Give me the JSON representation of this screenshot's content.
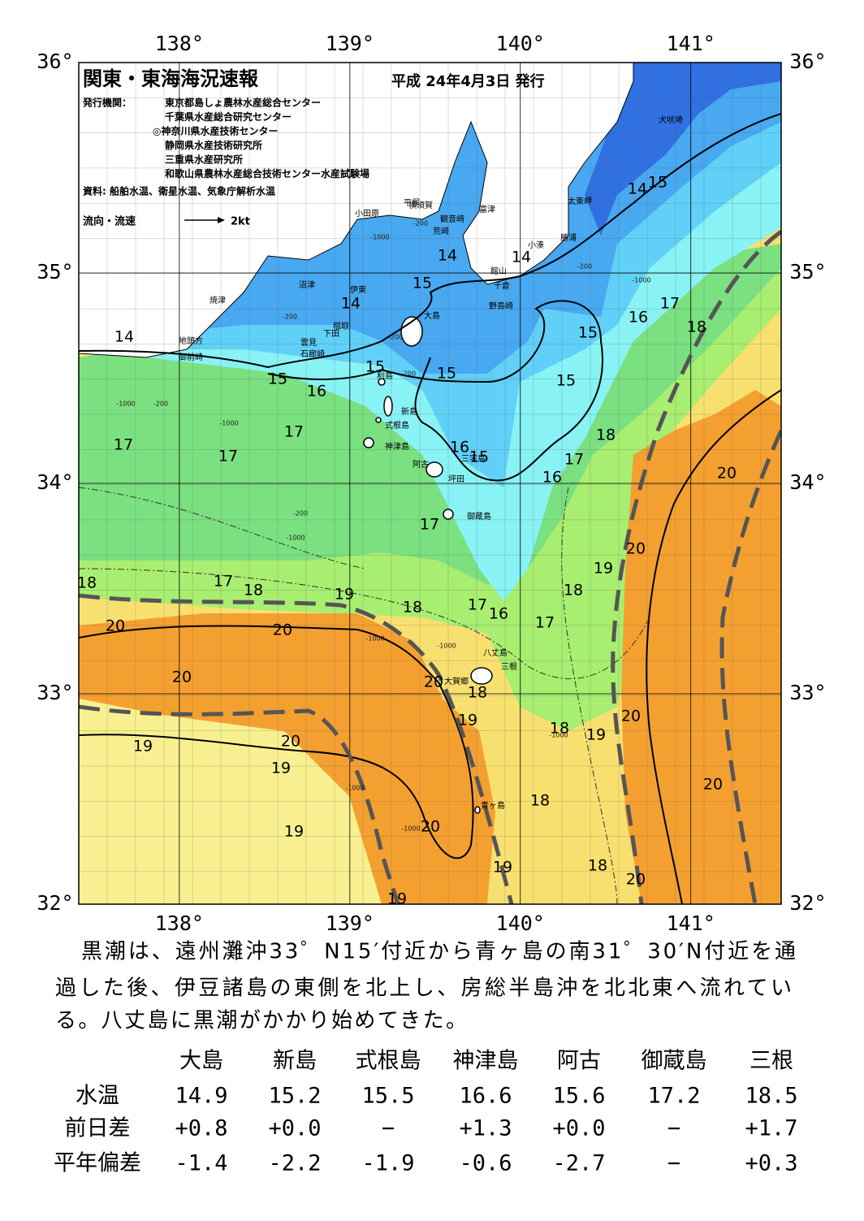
{
  "header": {
    "title": "関東・東海海況速報",
    "date": "平成 24年4月3日 発行",
    "issuer_label": "発行機関：",
    "issuers": [
      "東京都島しょ農林水産総合センター",
      "千葉県水産総合研究センター",
      "◎神奈川県水産技術センター",
      "静岡県水産技術研究所",
      "三重県水産研究所",
      "和歌山県農林水産総合技術センター水産試験場"
    ],
    "source": "資料: 船舶水温、衛星水温、気象庁解析水温",
    "legend_label": "流向・流速",
    "legend_speed": "2kt"
  },
  "map": {
    "xlim": [
      137.41,
      141.53
    ],
    "ylim": [
      32,
      36
    ],
    "xticks": [
      {
        "value": 138,
        "label": "138°"
      },
      {
        "value": 139,
        "label": "139°"
      },
      {
        "value": 140,
        "label": "140°"
      },
      {
        "value": 141,
        "label": "141°"
      }
    ],
    "yticks": [
      {
        "value": 32,
        "label": "32°"
      },
      {
        "value": 33,
        "label": "33°"
      },
      {
        "value": 34,
        "label": "34°"
      },
      {
        "value": 35,
        "label": "35°"
      },
      {
        "value": 36,
        "label": "36°"
      }
    ],
    "isotherm_labels": [
      14,
      14,
      14,
      14,
      14,
      15,
      15,
      15,
      15,
      15,
      15,
      15,
      16,
      16,
      16,
      16,
      16,
      15,
      17,
      18,
      17,
      17,
      17,
      18,
      17,
      17,
      20,
      19,
      18,
      18,
      17,
      18,
      19,
      18,
      17,
      17,
      20,
      20,
      20,
      20,
      18,
      19,
      18,
      19,
      20,
      19,
      20,
      19,
      20,
      18,
      19,
      20,
      19,
      18,
      20,
      19,
      20
    ],
    "depth_labels": [
      -1000,
      -200,
      -200,
      -1000,
      -200,
      -200,
      -200,
      -1000,
      -200,
      -1000,
      -200,
      -1000,
      -1000,
      -1000,
      -1000,
      -1000,
      -1000
    ],
    "place_names": [
      "犬吠埼",
      "太東岬",
      "勝浦",
      "小湊",
      "富津",
      "横須賀",
      "観音崎",
      "荒崎",
      "平塚",
      "小田原",
      "館山",
      "千倉",
      "野島崎",
      "沼津",
      "伊東",
      "焼津",
      "稲取",
      "下田",
      "雲見",
      "石廊崎",
      "地頭方",
      "御前崎",
      "大島",
      "利島",
      "新島",
      "式根島",
      "神津島",
      "三宅島",
      "阿古",
      "坪田",
      "御蔵島",
      "八丈島",
      "三根",
      "大賀郷",
      "青ヶ島"
    ]
  },
  "text": {
    "lines": [
      "黒潮は、遠州灘沖33゜N15′付近から青ヶ島の南31゜30′N付近を通",
      "過した後、伊豆諸島の東側を北上し、房総半島沖を北北東へ流れてい",
      "る。八丈島に黒潮がかかり始めてきた。"
    ]
  },
  "table": {
    "columns": [
      "大島",
      "新島",
      "式根島",
      "神津島",
      "阿古",
      "御蔵島",
      "三根"
    ],
    "rows": [
      {
        "label": "水温",
        "values": [
          "14.9",
          "15.2",
          "15.5",
          "16.6",
          "15.6",
          "17.2",
          "18.5"
        ]
      },
      {
        "label": "前日差",
        "values": [
          "+0.8",
          "+0.0",
          "−",
          "+1.3",
          "+0.0",
          "−",
          "+1.7"
        ]
      },
      {
        "label": "平年偏差",
        "values": [
          "-1.4",
          "-2.2",
          "-1.9",
          "-0.6",
          "-2.7",
          "−",
          "+0.3"
        ]
      }
    ]
  }
}
